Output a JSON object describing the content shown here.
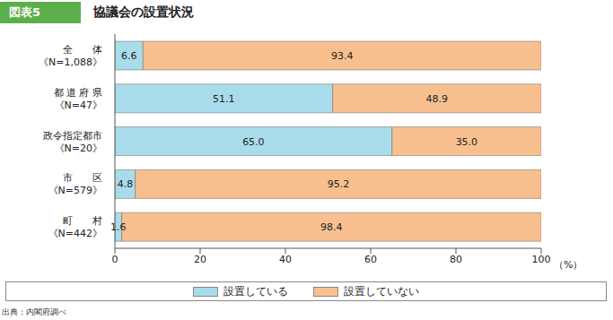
{
  "chart_data": {
    "type": "bar",
    "figure_number": "図表5",
    "title": "協議会の設置状況",
    "source": "出典：内閣府調べ",
    "orientation": "horizontal",
    "stacked": true,
    "data_labels": true,
    "grid": false,
    "legend": "bottom",
    "xlabel": "（%）",
    "categories": [
      "全　　体\n《N=1,088》",
      "都 道 府 県\n《N=47》",
      "政令指定都市\n《N=20》",
      "市　　区\n《N=579》",
      "町　　村\n《N=442》"
    ],
    "xlim": [
      0,
      100
    ],
    "xticks": [
      0,
      20,
      40,
      60,
      80,
      100
    ],
    "series": [
      {
        "name": "設置している",
        "color": "#a9dcea",
        "values": [
          6.6,
          51.1,
          65.0,
          4.8,
          1.6
        ],
        "value_labels": [
          "6.6",
          "51.1",
          "65.0",
          "4.8",
          "1.6"
        ]
      },
      {
        "name": "設置していない",
        "color": "#f8c08e",
        "values": [
          93.4,
          48.9,
          35.0,
          95.2,
          98.4
        ],
        "value_labels": [
          "93.4",
          "48.9",
          "35.0",
          "95.2",
          "98.4"
        ]
      }
    ]
  }
}
